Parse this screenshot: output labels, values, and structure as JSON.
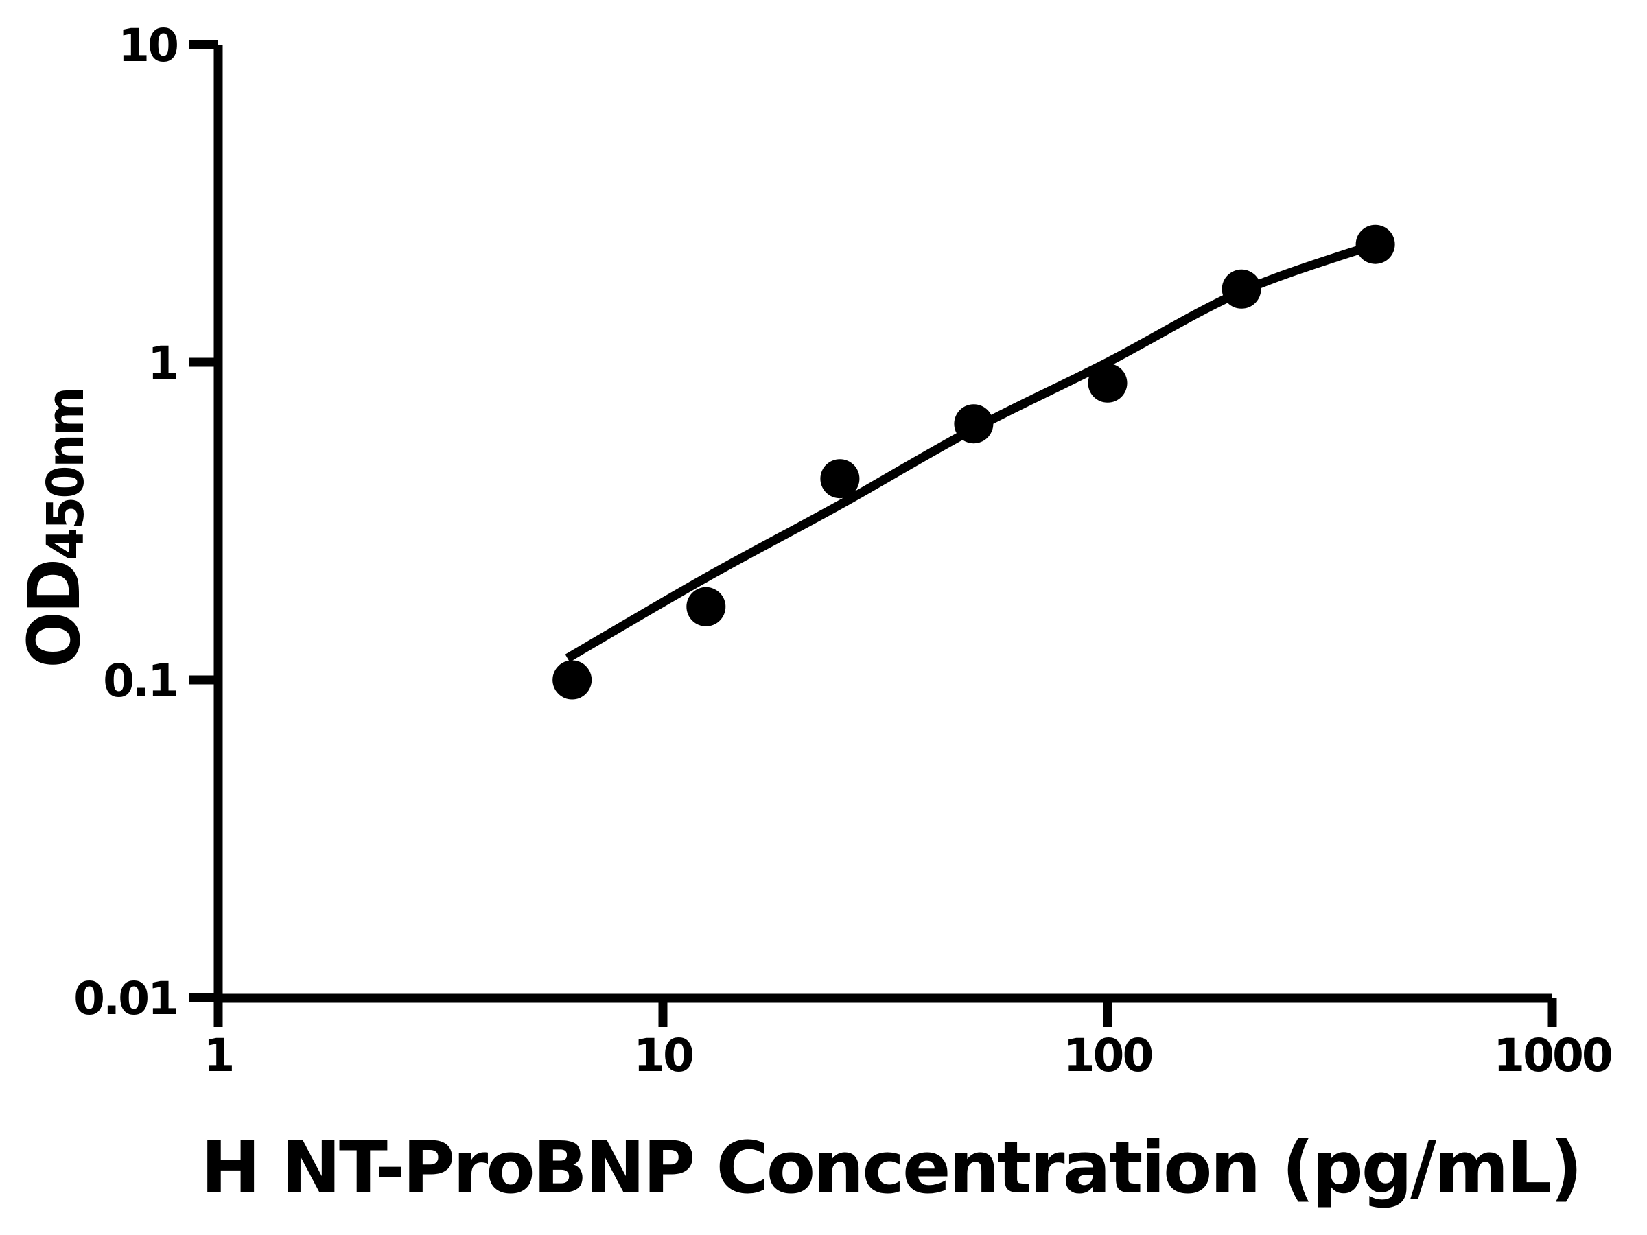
{
  "figure": {
    "background": "#ffffff",
    "ink": "#000000"
  },
  "chart_data": {
    "type": "scatter",
    "title": "",
    "xlabel": "H NT-ProBNP Concentration (pg/mL)",
    "ylabel_main": "OD",
    "ylabel_sub": "450nm",
    "xscale": "log",
    "yscale": "log",
    "xlim": [
      1,
      1000
    ],
    "ylim": [
      0.01,
      10
    ],
    "grid": false,
    "legend": null,
    "x_ticks": [
      {
        "value": 1,
        "label": "1"
      },
      {
        "value": 10,
        "label": "10"
      },
      {
        "value": 100,
        "label": "100"
      },
      {
        "value": 1000,
        "label": "1000"
      }
    ],
    "y_ticks": [
      {
        "value": 10,
        "label": "10"
      },
      {
        "value": 1,
        "label": "1"
      },
      {
        "value": 0.1,
        "label": "0.1"
      },
      {
        "value": 0.01,
        "label": "0.01"
      }
    ],
    "series": [
      {
        "marker": "circle",
        "color": "#000000",
        "x": [
          6.25,
          12.5,
          25,
          50,
          100,
          200,
          400
        ],
        "y": [
          0.1,
          0.17,
          0.43,
          0.64,
          0.86,
          1.7,
          2.35
        ]
      }
    ],
    "fit_curve": {
      "x": [
        6.1,
        12.5,
        25,
        50,
        100,
        200,
        400
      ],
      "y": [
        0.117,
        0.21,
        0.356,
        0.617,
        1.0,
        1.67,
        2.35
      ]
    }
  }
}
